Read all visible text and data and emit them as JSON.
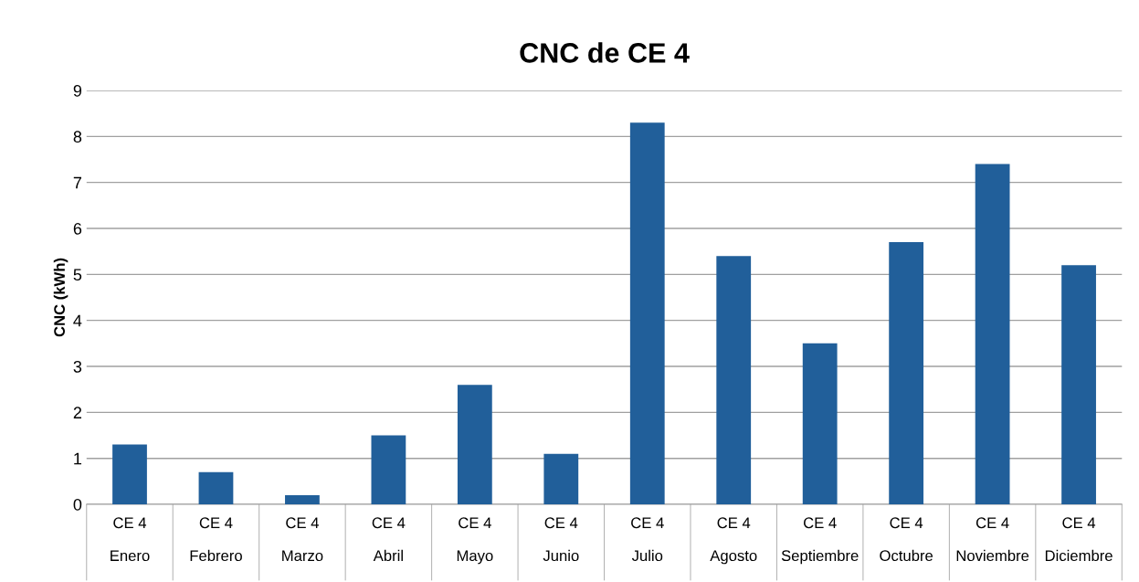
{
  "chart_data": {
    "type": "bar",
    "title": "CNC de CE 4",
    "ylabel": "CNC (kWh)",
    "categories": [
      "CE 4\n\nEnero",
      "CE 4\n\nFebrero",
      "CE 4\n\nMarzo",
      "CE 4\n\nAbril",
      "CE 4\n\nMayo",
      "CE 4\n\nJunio",
      "CE 4\n\nJulio",
      "CE 4\n\nAgosto",
      "CE 4\n\nSeptiembre",
      "CE 4\n\nOctubre",
      "CE 4\n\nNoviembre",
      "CE 4\n\nDiciembre"
    ],
    "values": [
      1.3,
      0.7,
      0.2,
      1.5,
      2.6,
      1.1,
      8.3,
      5.4,
      3.5,
      5.7,
      7.4,
      5.2
    ],
    "color": "#215f9a",
    "ylim": [
      0,
      9
    ],
    "yticks": [
      0,
      1,
      2,
      3,
      4,
      5,
      6,
      7,
      8,
      9
    ],
    "grid": "y",
    "legend": false
  }
}
